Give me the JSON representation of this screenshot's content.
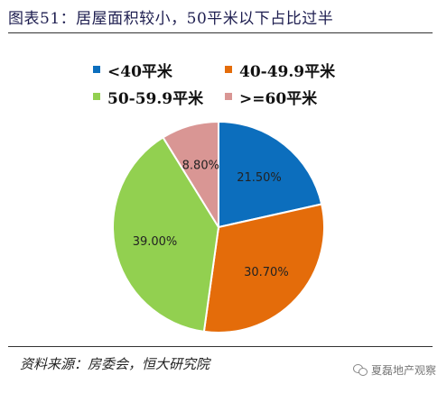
{
  "figure": {
    "title": "图表51：居屋面积较小，50平米以下占比过半",
    "source": "资料来源：房委会，恒大研究院",
    "watermark": "夏磊地产观察"
  },
  "chart_data": {
    "type": "pie",
    "title": "",
    "categories": [
      "<40平米",
      "40-49.9平米",
      "50-59.9平米",
      ">=60平米"
    ],
    "values": [
      21.5,
      30.7,
      39.0,
      8.8
    ],
    "value_labels": [
      "21.50%",
      "30.70%",
      "39.00%",
      "8.80%"
    ],
    "colors": [
      "#0c6ebd",
      "#e46c0a",
      "#92d050",
      "#d99694"
    ],
    "legend": "top",
    "start_angle_deg": 0,
    "direction": "clockwise"
  }
}
